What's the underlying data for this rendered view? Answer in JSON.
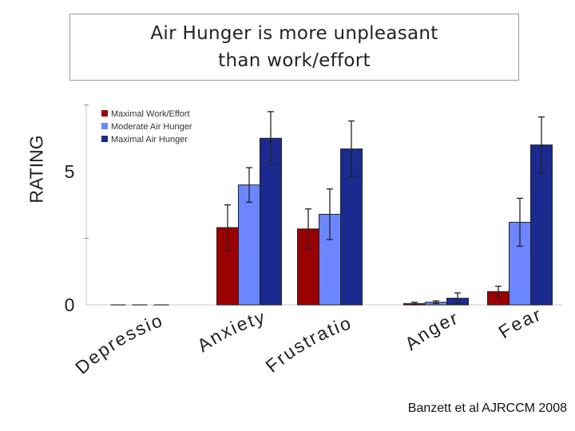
{
  "title": {
    "line1": "Air Hunger is more unpleasant",
    "line2": "than work/effort"
  },
  "citation": "Banzett et al AJRCCM 2008",
  "chart_data": {
    "type": "bar",
    "title": "Air Hunger is more unpleasant than work/effort",
    "ylabel": "RATING",
    "xlabel": "",
    "ylim": [
      0,
      7.5
    ],
    "yticks": [
      0,
      5
    ],
    "categories": [
      "Depression",
      "Anxiety",
      "Frustration",
      "Anger",
      "Fear"
    ],
    "series": [
      {
        "name": "Maximal Work/Effort",
        "color": "#9b0000",
        "values": [
          0,
          2.9,
          2.85,
          0.05,
          0.5
        ],
        "errors": [
          0,
          0.85,
          0.75,
          0.05,
          0.2
        ]
      },
      {
        "name": "Moderate Air Hunger",
        "color": "#6b86ff",
        "values": [
          0,
          4.5,
          3.4,
          0.1,
          3.1
        ],
        "errors": [
          0,
          0.65,
          0.95,
          0.05,
          0.9
        ]
      },
      {
        "name": "Maximal Air Hunger",
        "color": "#1a2a8f",
        "values": [
          0,
          6.25,
          5.85,
          0.25,
          6.0
        ],
        "errors": [
          0,
          1.0,
          1.05,
          0.2,
          1.05
        ]
      }
    ],
    "legend": "top-left",
    "grid": false
  }
}
